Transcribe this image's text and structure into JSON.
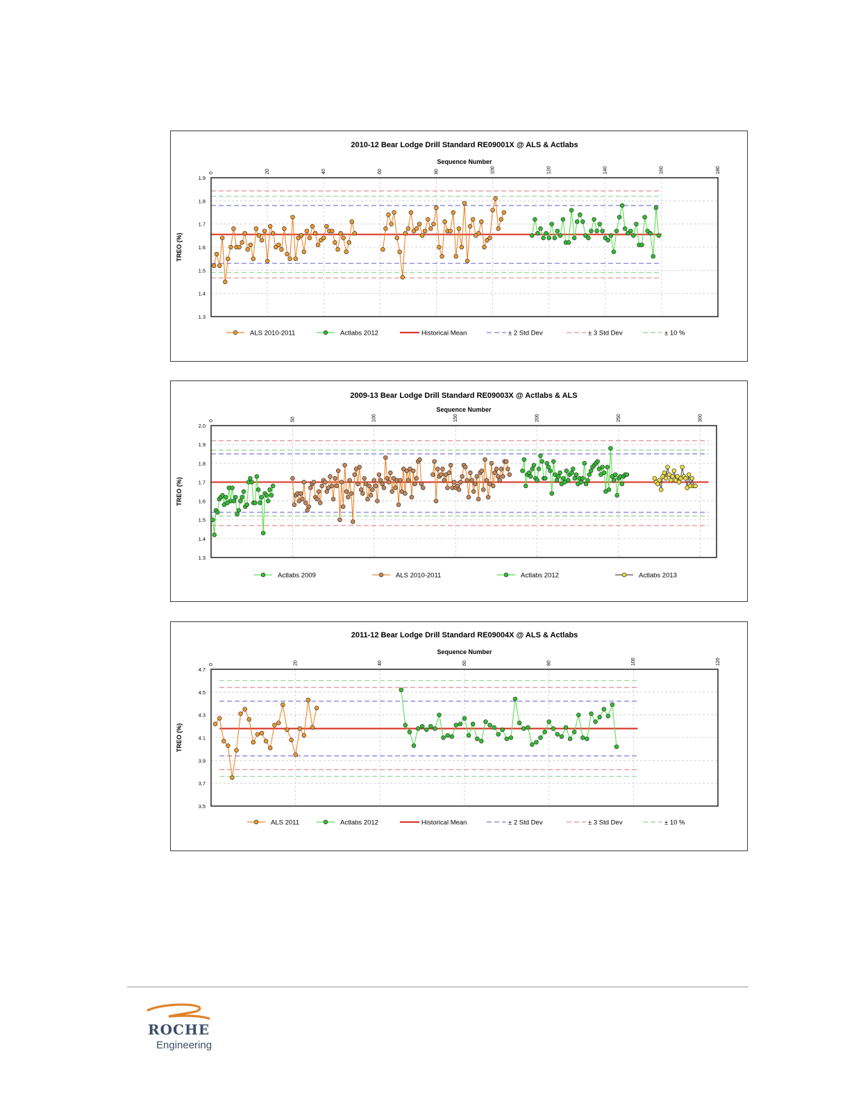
{
  "charts": [
    {
      "title": "2010-12 Bear Lodge Drill Standard RE09001X @ ALS & Actlabs",
      "xlabel": "Sequence Number",
      "ylabel": "TREO (%)",
      "xlim": [
        0,
        180
      ],
      "xticks": [
        0,
        20,
        40,
        60,
        80,
        100,
        120,
        140,
        160,
        180
      ],
      "ylim": [
        1.3,
        1.9
      ],
      "yticks": [
        "1.3",
        "1.4",
        "1.5",
        "1.6",
        "1.7",
        "1.8",
        "1.9"
      ],
      "reference_extent": [
        0,
        160
      ],
      "reference_lines": [
        {
          "legend": 2,
          "value": 1.655
        },
        {
          "legend": 3,
          "value": 1.78
        },
        {
          "legend": 3,
          "value": 1.53
        },
        {
          "legend": 4,
          "value": 1.843
        },
        {
          "legend": 4,
          "value": 1.467
        },
        {
          "legend": 5,
          "value": 1.82
        },
        {
          "legend": 5,
          "value": 1.49
        }
      ],
      "series": [
        {
          "name": "ALS 2010-2011",
          "color": "#e8862c",
          "fill": "#f39a2a",
          "x0": 1,
          "values": [
            1.52,
            1.57,
            1.52,
            1.64,
            1.45,
            1.55,
            1.6,
            1.68,
            1.6,
            1.6,
            1.62,
            1.66,
            1.59,
            1.61,
            1.55,
            1.68,
            1.65,
            1.63,
            1.67,
            1.54,
            1.69,
            1.66,
            1.6,
            1.61,
            1.59,
            1.68,
            1.57,
            1.55,
            1.73,
            1.55,
            1.64,
            1.65,
            1.58,
            1.67,
            1.64,
            1.69,
            1.66,
            1.61,
            1.63,
            1.64,
            1.69,
            1.67,
            1.67,
            1.62,
            1.59,
            1.66,
            1.64,
            1.58,
            1.62,
            1.71,
            1.66
          ]
        },
        {
          "name": "ALS 2010-2011",
          "color": "#e8862c",
          "fill": "#f39a2a",
          "x0": 61,
          "legend_ref": 0,
          "values": [
            1.59,
            1.68,
            1.74,
            1.7,
            1.75,
            1.64,
            1.58,
            1.47,
            1.66,
            1.68,
            1.75,
            1.67,
            1.68,
            1.7,
            1.65,
            1.67,
            1.72,
            1.68,
            1.7,
            1.77,
            1.6,
            1.56,
            1.71,
            1.67,
            1.67,
            1.75,
            1.56,
            1.68,
            1.6,
            1.79,
            1.54,
            1.69,
            1.72,
            1.65,
            1.66,
            1.71,
            1.6,
            1.63,
            1.64,
            1.76,
            1.81,
            1.68,
            1.72,
            1.75
          ]
        },
        {
          "name": "Actlabs 2012",
          "color": "#5bde4f",
          "fill": "#2fbf2f",
          "x0": 114,
          "values": [
            1.65,
            1.72,
            1.66,
            1.68,
            1.64,
            1.66,
            1.64,
            1.7,
            1.64,
            1.67,
            1.65,
            1.72,
            1.62,
            1.62,
            1.76,
            1.64,
            1.71,
            1.74,
            1.71,
            1.65,
            1.64,
            1.67,
            1.72,
            1.67,
            1.7,
            1.67,
            1.64,
            1.63,
            1.65,
            1.58,
            1.67,
            1.73,
            1.78,
            1.68,
            1.66,
            1.67,
            1.65,
            1.7,
            1.61,
            1.61,
            1.73,
            1.67,
            1.66,
            1.56,
            1.77,
            1.65
          ]
        }
      ],
      "legend": [
        {
          "label": "ALS 2010-2011",
          "kind": "marker",
          "color": "#e8862c",
          "fill": "#f39a2a"
        },
        {
          "label": "Actlabs 2012",
          "kind": "marker",
          "color": "#5bde4f",
          "fill": "#2fbf2f"
        },
        {
          "label": "Historical Mean",
          "kind": "solid",
          "color": "#d93a2b"
        },
        {
          "label": "± 2 Std Dev",
          "kind": "dash",
          "color": "#7a7ad8"
        },
        {
          "label": "± 3 Std Dev",
          "kind": "dash",
          "color": "#e58c8c"
        },
        {
          "label": "± 10 %",
          "kind": "dash",
          "color": "#92d492"
        }
      ]
    },
    {
      "title": "2009-13 Bear Lodge Drill Standard RE09003X @ Actlabs & ALS",
      "xlabel": "Sequence Number",
      "ylabel": "TREO (%)",
      "xlim": [
        0,
        310
      ],
      "xticks": [
        0,
        50,
        100,
        150,
        200,
        250,
        300
      ],
      "ylim": [
        1.3,
        2.0
      ],
      "yticks": [
        "1.3",
        "1.4",
        "1.5",
        "1.6",
        "1.7",
        "1.8",
        "1.9",
        "2.0"
      ],
      "reference_extent": [
        0,
        305
      ],
      "reference_lines": [
        {
          "value": 1.92,
          "color": "#e58c8c"
        },
        {
          "value": 1.87,
          "color": "#92d492"
        },
        {
          "value": 1.85,
          "color": "#7a7ad8"
        },
        {
          "value": 1.7,
          "color": "#d93a2b",
          "solid": true
        },
        {
          "value": 1.54,
          "color": "#7a7ad8"
        },
        {
          "value": 1.52,
          "color": "#92d492"
        },
        {
          "value": 1.47,
          "color": "#e58c8c"
        }
      ],
      "series": [
        {
          "name": "Actlabs 2009",
          "color": "#5bde4f",
          "fill": "#2fbf2f",
          "x0": 1,
          "values": [
            1.5,
            1.42,
            1.55,
            1.54,
            1.61,
            1.62,
            1.63,
            1.58,
            1.62,
            1.59,
            1.67,
            1.6,
            1.67,
            1.6,
            1.62,
            1.53,
            1.55,
            1.6,
            1.62,
            1.65,
            1.57,
            1.58,
            1.7,
            1.72,
            1.7,
            1.59,
            1.59,
            1.73,
            1.66,
            1.59,
            1.62,
            1.43,
            1.64,
            1.63,
            1.6,
            1.66,
            1.63,
            1.68
          ]
        },
        {
          "name": "ALS 2010-2011",
          "color": "#e8862c",
          "fill": "#c8875a",
          "x0": 50,
          "values": [
            1.72,
            1.58,
            1.63,
            1.64,
            1.6,
            1.64,
            1.61,
            1.7,
            1.59,
            1.55,
            1.57,
            1.67,
            1.69,
            1.7,
            1.62,
            1.61,
            1.65,
            1.59,
            1.68,
            1.71,
            1.7,
            1.65,
            1.67,
            1.73,
            1.68,
            1.61,
            1.72,
            1.68,
            1.76,
            1.5,
            1.7,
            1.57,
            1.79,
            1.65,
            1.62,
            1.71,
            1.64,
            1.49,
            1.74,
            1.77,
            1.69,
            1.78,
            1.66,
            1.64,
            1.72,
            1.69,
            1.61,
            1.68,
            1.63,
            1.66,
            1.71,
            1.68,
            1.6,
            1.74,
            1.71,
            1.69,
            1.67,
            1.83,
            1.72,
            1.7,
            1.75,
            1.65,
            1.72,
            1.67,
            1.71,
            1.58,
            1.71,
            1.65,
            1.77,
            1.64,
            1.76,
            1.71,
            1.77,
            1.62,
            1.76,
            1.69,
            1.72,
            1.81,
            1.82,
            1.69,
            1.67
          ]
        },
        {
          "name": "ALS 2010-2011",
          "color": "#e8862c",
          "fill": "#c8875a",
          "x0": 136,
          "values": [
            1.74,
            1.81,
            1.6,
            1.77,
            1.73,
            1.74,
            1.77,
            1.71,
            1.74,
            1.67,
            1.75,
            1.79,
            1.67,
            1.7,
            1.67,
            1.68,
            1.66,
            1.7,
            1.73,
            1.79,
            1.78,
            1.71,
            1.62,
            1.75,
            1.71,
            1.65,
            1.69,
            1.73,
            1.61,
            1.75,
            1.76,
            1.66,
            1.82,
            1.71,
            1.62,
            1.69,
            1.8,
            1.68,
            1.75,
            1.77,
            1.73,
            1.71,
            1.77,
            1.73,
            1.81,
            1.81,
            1.77,
            1.74
          ]
        },
        {
          "name": "Actlabs 2012",
          "color": "#5bde4f",
          "fill": "#2fbf2f",
          "x0": 191,
          "values": [
            1.76,
            1.82,
            1.68,
            1.74,
            1.75,
            1.73,
            1.77,
            1.79,
            1.72,
            1.71,
            1.77,
            1.84,
            1.81,
            1.72,
            1.72,
            1.8,
            1.78,
            1.76,
            1.64,
            1.81,
            1.74,
            1.71,
            1.73,
            1.75,
            1.69,
            1.72,
            1.7,
            1.76,
            1.71,
            1.74,
            1.75,
            1.77,
            1.72,
            1.74,
            1.69,
            1.72,
            1.7,
            1.72,
            1.8,
            1.69,
            1.71,
            1.74,
            1.76,
            1.78,
            1.79,
            1.8,
            1.81,
            1.77,
            1.74,
            1.78,
            1.75,
            1.65,
            1.78,
            1.66,
            1.88,
            1.73,
            1.71,
            1.74,
            1.63,
            1.72,
            1.73,
            1.69,
            1.73,
            1.74,
            1.74
          ]
        },
        {
          "name": "Actlabs 2013",
          "color": "#4d4d4d",
          "fill": "#f0dc3a",
          "x0": 272,
          "values": [
            1.72,
            1.7,
            1.69,
            1.71,
            1.66,
            1.73,
            1.75,
            1.72,
            1.78,
            1.74,
            1.71,
            1.73,
            1.76,
            1.71,
            1.73,
            1.7,
            1.72,
            1.78,
            1.73,
            1.72,
            1.67,
            1.74,
            1.68,
            1.72,
            1.68,
            1.68
          ]
        }
      ],
      "legend": [
        {
          "label": "Actlabs 2009",
          "kind": "marker",
          "color": "#5bde4f",
          "fill": "#2fbf2f"
        },
        {
          "label": "ALS 2010-2011",
          "kind": "marker",
          "color": "#e8862c",
          "fill": "#c8875a"
        },
        {
          "label": "Actlabs 2012",
          "kind": "marker",
          "color": "#5bde4f",
          "fill": "#2fbf2f"
        },
        {
          "label": "Actlabs 2013",
          "kind": "marker",
          "color": "#4d4d4d",
          "fill": "#f0dc3a"
        }
      ]
    },
    {
      "title": "2011-12 Bear Lodge Drill Standard RE09004X @ ALS & Actlabs",
      "xlabel": "Sequence Number",
      "ylabel": "TREO (%)",
      "xlim": [
        0,
        120
      ],
      "xticks": [
        0,
        20,
        40,
        60,
        80,
        100,
        120
      ],
      "ylim": [
        3.5,
        4.7
      ],
      "yticks": [
        "3.5",
        "3.7",
        "3.9",
        "4.1",
        "4.3",
        "4.5",
        "4.7"
      ],
      "reference_extent": [
        2,
        101
      ],
      "reference_lines": [
        {
          "legend": 2,
          "value": 4.18
        },
        {
          "legend": 3,
          "value": 4.42
        },
        {
          "legend": 3,
          "value": 3.94
        },
        {
          "legend": 4,
          "value": 4.54
        },
        {
          "legend": 4,
          "value": 3.82
        },
        {
          "legend": 5,
          "value": 4.6
        },
        {
          "legend": 5,
          "value": 3.76
        }
      ],
      "series": [
        {
          "name": "ALS 2011",
          "color": "#e8862c",
          "fill": "#f39a2a",
          "x0": 1,
          "values": [
            4.22,
            4.27,
            4.07,
            4.03,
            3.75,
            3.99,
            4.31,
            4.35,
            4.26,
            4.06,
            4.13,
            4.14,
            4.07,
            4.01,
            4.21,
            4.23,
            4.39,
            4.17,
            4.08,
            3.95,
            4.18,
            4.12,
            4.43,
            4.19,
            4.36
          ]
        },
        {
          "name": "Actlabs 2012",
          "color": "#5bde4f",
          "fill": "#2fbf2f",
          "x0": 45,
          "values": [
            4.52,
            4.21,
            4.15,
            4.03,
            4.18,
            4.2,
            4.17,
            4.2,
            4.18,
            4.3,
            4.1,
            4.12,
            4.11,
            4.21,
            4.22,
            4.27,
            4.12,
            4.22,
            4.09,
            4.07,
            4.24,
            4.21,
            4.19,
            4.13,
            4.17,
            4.09,
            4.1,
            4.44,
            4.23,
            4.18,
            4.19,
            4.04,
            4.06,
            4.1,
            4.15,
            4.24,
            4.18,
            4.13,
            4.11,
            4.19,
            4.09,
            4.15,
            4.3,
            4.1,
            4.09,
            4.31,
            4.24,
            4.28,
            4.35,
            4.29,
            4.39,
            4.02
          ]
        }
      ],
      "legend": [
        {
          "label": "ALS 2011",
          "kind": "marker",
          "color": "#e8862c",
          "fill": "#f39a2a"
        },
        {
          "label": "Actlabs 2012",
          "kind": "marker",
          "color": "#5bde4f",
          "fill": "#2fbf2f"
        },
        {
          "label": "Historical Mean",
          "kind": "solid",
          "color": "#d93a2b"
        },
        {
          "label": "± 2 Std Dev",
          "kind": "dash",
          "color": "#7a7ad8"
        },
        {
          "label": "± 3 Std Dev",
          "kind": "dash",
          "color": "#e58c8c"
        },
        {
          "label": "± 10 %",
          "kind": "dash",
          "color": "#92d492"
        }
      ]
    }
  ],
  "logo": {
    "name": "ROCHE",
    "sub": "Engineering",
    "swoosh_color": "#e0832a"
  }
}
